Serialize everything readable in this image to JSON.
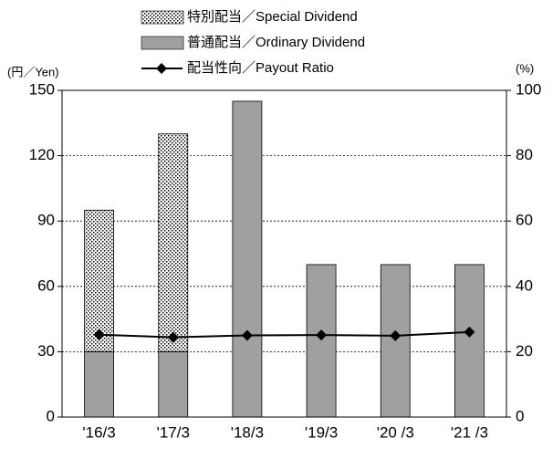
{
  "chart_data": {
    "type": "bar",
    "stacked": true,
    "y_label": "(円／Yen)",
    "y2_label": "(%)",
    "categories": [
      "'16/3",
      "'17/3",
      "'18/3",
      "'19/3",
      "'20 /3",
      "'21 /3"
    ],
    "series": [
      {
        "name": "普通配当／Ordinary Dividend",
        "type": "bar",
        "color": "#a0a0a0",
        "values": [
          30,
          30,
          145,
          70,
          70,
          70
        ]
      },
      {
        "name": "特別配当／Special Dividend",
        "type": "bar",
        "pattern": "dots",
        "color": "#000000",
        "values": [
          65,
          100,
          null,
          null,
          null,
          null
        ]
      },
      {
        "name": "配当性向／Payout Ratio",
        "type": "line",
        "axis": "y2",
        "color": "#000000",
        "values": [
          25.2,
          24.4,
          25.0,
          25.1,
          24.9,
          26.0
        ]
      }
    ],
    "legend_order": [
      1,
      0,
      2
    ],
    "ylim": [
      0,
      150
    ],
    "yticks": [
      0,
      30,
      60,
      90,
      120,
      150
    ],
    "y2lim": [
      0,
      100
    ],
    "y2ticks": [
      0,
      20,
      40,
      60,
      80,
      100
    ],
    "grid": true
  }
}
